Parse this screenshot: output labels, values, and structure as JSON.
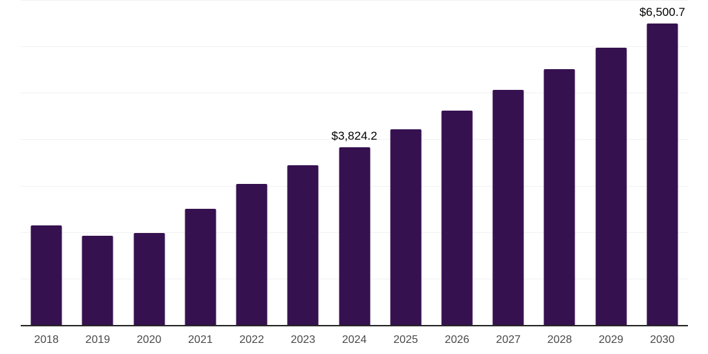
{
  "chart_data": {
    "type": "bar",
    "title": "",
    "xlabel": "",
    "ylabel": "",
    "categories": [
      "2018",
      "2019",
      "2020",
      "2021",
      "2022",
      "2023",
      "2024",
      "2025",
      "2026",
      "2027",
      "2028",
      "2029",
      "2030"
    ],
    "values": [
      2145,
      1920,
      1985,
      2505,
      3035,
      3440,
      3824.2,
      4210,
      4620,
      5065,
      5510,
      5975,
      6500.7
    ],
    "data_labels": [
      "",
      "",
      "",
      "",
      "",
      "",
      "$3,824.2",
      "",
      "",
      "",
      "",
      "",
      "$6,500.7"
    ],
    "ylim": [
      0,
      7000
    ],
    "grid_interval": 1000,
    "grid": "horizontal",
    "legend": "none",
    "bar_color": "#36114f",
    "grid_color": "#f1f1f1",
    "axis_line_color": "#262626",
    "tick_label_color": "#4a4a4a",
    "data_label_color": "#000000",
    "background_color": "#ffffff"
  }
}
